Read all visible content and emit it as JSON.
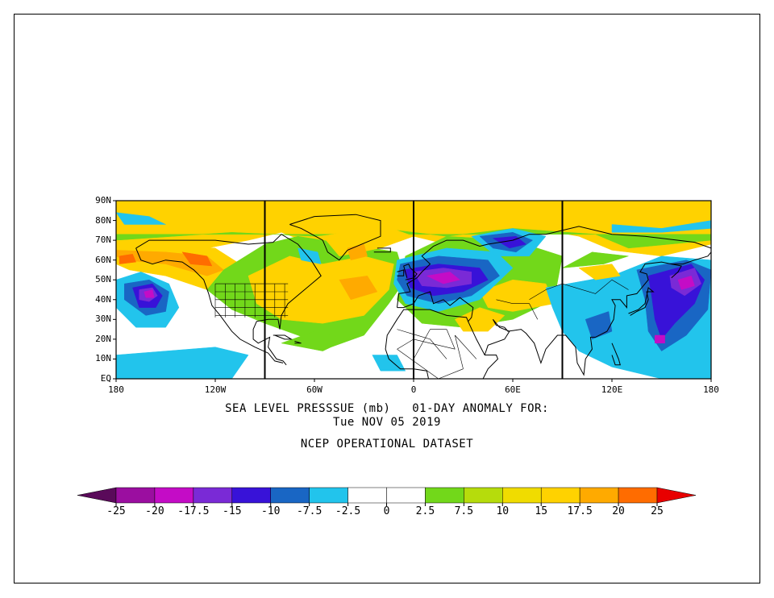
{
  "map": {
    "title": "SEA LEVEL PRESSSUE (mb)   01-DAY ANOMALY FOR:",
    "date": "Tue NOV 05 2019",
    "dataset": "NCEP OPERATIONAL DATASET",
    "lat_labels": [
      "90N",
      "80N",
      "70N",
      "60N",
      "50N",
      "40N",
      "30N",
      "20N",
      "10N",
      "EQ"
    ],
    "lon_labels": [
      "180",
      "120W",
      "60W",
      "0",
      "60E",
      "120E",
      "180"
    ],
    "lat_range": [
      0,
      90
    ],
    "lon_range": [
      -180,
      180
    ],
    "vertical_lines_lon": [
      -90,
      0,
      90
    ]
  },
  "colorbar": {
    "labels": [
      "-25",
      "-20",
      "-17.5",
      "-15",
      "-10",
      "-7.5",
      "-2.5",
      "0",
      "2.5",
      "7.5",
      "10",
      "15",
      "17.5",
      "20",
      "25"
    ],
    "colors": [
      "#9b0ea0",
      "#c40cc6",
      "#7a2ad6",
      "#3812d8",
      "#1966c4",
      "#22c4ec",
      "#ffffff",
      "#ffffff",
      "#72d81a",
      "#b6dc0c",
      "#f0dc00",
      "#ffd200",
      "#ffaa00",
      "#ff6c00"
    ],
    "low_arrow_color": "#5a0a5a",
    "high_arrow_color": "#e80000"
  },
  "anomaly_features": [
    {
      "name": "NE Pacific low",
      "lon": -160,
      "lat": 43,
      "value": -17.5
    },
    {
      "name": "Europe low",
      "lon": 15,
      "lat": 51,
      "value": -20
    },
    {
      "name": "Siberia low",
      "lon": 60,
      "lat": 68,
      "value": -15
    },
    {
      "name": "NW Pacific low",
      "lon": 165,
      "lat": 47,
      "value": -17.5
    },
    {
      "name": "Alaska high",
      "lon": -135,
      "lat": 63,
      "value": 20
    },
    {
      "name": "Atlantic high",
      "lon": -35,
      "lat": 45,
      "value": 10
    },
    {
      "name": "Arctic high",
      "lon": -40,
      "lat": 80,
      "value": 10
    }
  ]
}
